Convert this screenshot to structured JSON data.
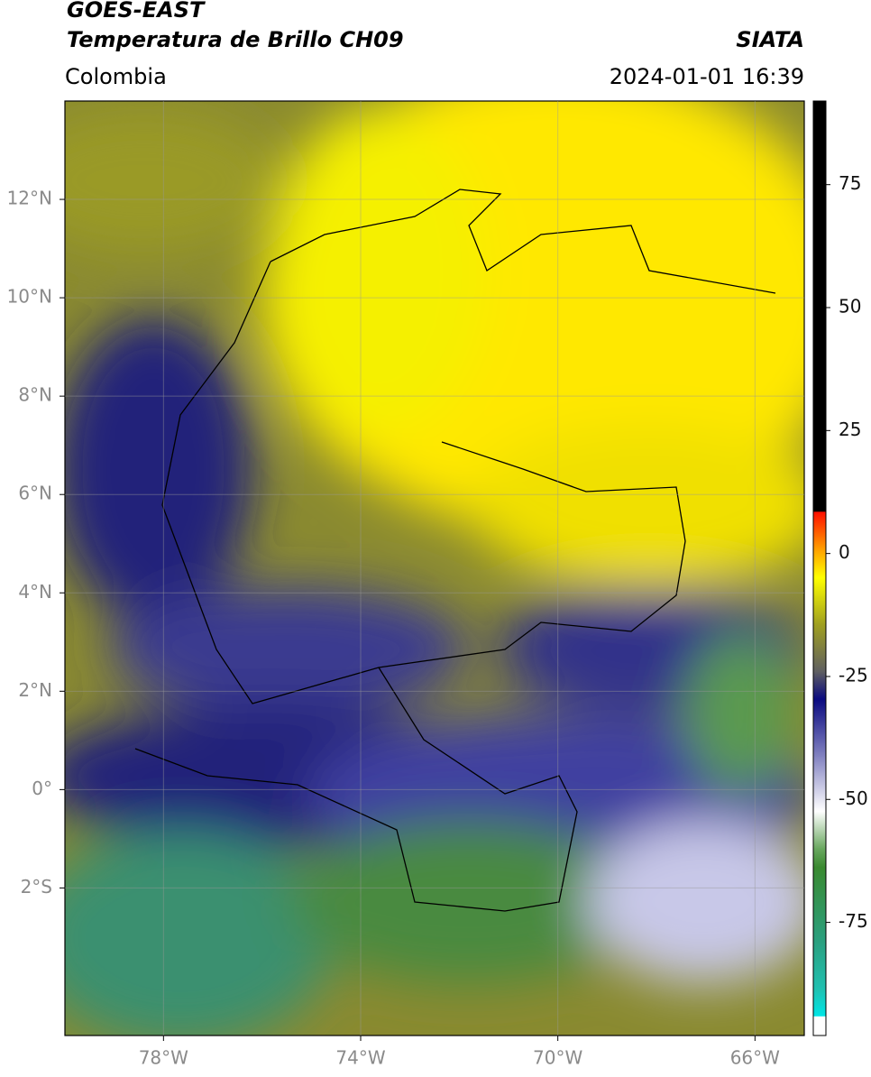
{
  "header": {
    "title": "GOES-EAST",
    "subtitle": "Temperatura de Brillo CH09",
    "region": "Colombia",
    "source": "SIATA",
    "timestamp": "2024-01-01 16:39"
  },
  "map": {
    "xlim": [
      -80,
      -65
    ],
    "ylim": [
      -5,
      14
    ],
    "xticks": [
      {
        "value": -78,
        "label": "78°W"
      },
      {
        "value": -74,
        "label": "74°W"
      },
      {
        "value": -70,
        "label": "70°W"
      },
      {
        "value": -66,
        "label": "66°W"
      }
    ],
    "yticks": [
      {
        "value": 12,
        "label": "12°N"
      },
      {
        "value": 10,
        "label": "10°N"
      },
      {
        "value": 8,
        "label": "8°N"
      },
      {
        "value": 6,
        "label": "6°N"
      },
      {
        "value": 4,
        "label": "4°N"
      },
      {
        "value": 2,
        "label": "2°N"
      },
      {
        "value": 0,
        "label": "0°"
      },
      {
        "value": -2,
        "label": "2°S"
      }
    ],
    "grid": true
  },
  "colorbar": {
    "lim": [
      -98,
      92
    ],
    "ticks": [
      75,
      50,
      25,
      0,
      -25,
      -50,
      -75
    ]
  }
}
